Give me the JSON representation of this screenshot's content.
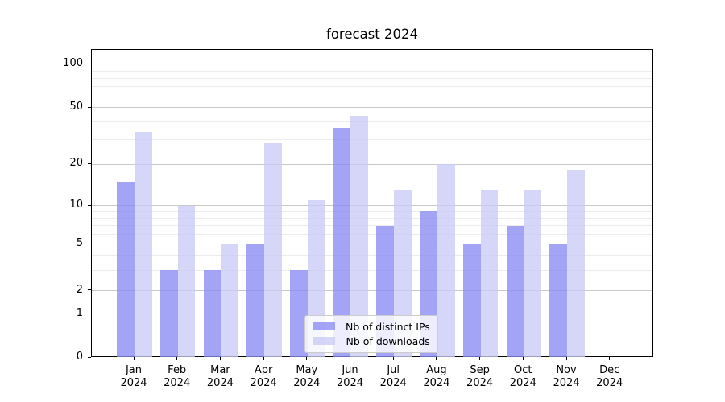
{
  "chart_data": {
    "type": "bar",
    "title": "forecast 2024",
    "months": [
      "Jan",
      "Feb",
      "Mar",
      "Apr",
      "May",
      "Jun",
      "Jul",
      "Aug",
      "Sep",
      "Oct",
      "Nov",
      "Dec"
    ],
    "year": "2024",
    "series": [
      {
        "name": "Nb of distinct IPs",
        "color": "#8a8af4",
        "values": [
          15,
          3,
          3,
          5,
          3,
          36,
          7,
          9,
          5,
          7,
          5,
          0
        ]
      },
      {
        "name": "Nb of downloads",
        "color": "#cbcbf7",
        "values": [
          34,
          10,
          5,
          28,
          11,
          44,
          13,
          20,
          13,
          13,
          18,
          0
        ]
      }
    ],
    "fill_alpha": 0.78,
    "yticks_major": [
      0,
      1,
      2,
      5,
      10,
      20,
      50,
      100
    ],
    "yticklabels": [
      "0",
      "1",
      "2",
      "5",
      "10",
      "20",
      "50",
      "100"
    ],
    "yticks_minor": [
      3,
      4,
      6,
      7,
      8,
      9,
      30,
      40,
      60,
      70,
      80,
      90
    ],
    "ylim": [
      0,
      126
    ],
    "yscale": "symlog",
    "grid": "horizontal-major-and-minor",
    "legend_position": "lower-center"
  }
}
